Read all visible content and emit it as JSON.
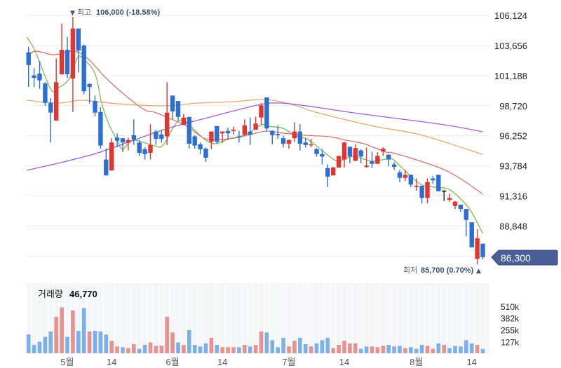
{
  "chart_data": {
    "type": "candlestick",
    "price_axis": {
      "range": [
        85539,
        107389
      ],
      "ticks": [
        "106,124",
        "103,656",
        "101,188",
        "98,720",
        "96,252",
        "93,784",
        "91,316",
        "88,848"
      ],
      "tick_values": [
        106124,
        103656,
        101188,
        98720,
        96252,
        93784,
        91316,
        88848,
        86380
      ]
    },
    "x_axis": {
      "labels": [
        {
          "index": 7,
          "text": "5월"
        },
        {
          "index": 15,
          "text": "14"
        },
        {
          "index": 26,
          "text": "6월"
        },
        {
          "index": 35,
          "text": "14"
        },
        {
          "index": 47,
          "text": "7월"
        },
        {
          "index": 57,
          "text": "14"
        },
        {
          "index": 70,
          "text": "8월"
        },
        {
          "index": 80,
          "text": "14"
        }
      ]
    },
    "candles_ohlc": [
      [
        103100,
        103550,
        100250,
        102050
      ],
      [
        101200,
        101800,
        100250,
        101000
      ],
      [
        101350,
        102400,
        100100,
        100800
      ],
      [
        100550,
        100650,
        98700,
        98950
      ],
      [
        98950,
        99350,
        95700,
        98150
      ],
      [
        97500,
        102600,
        97500,
        100650
      ],
      [
        101300,
        105450,
        101250,
        103300
      ],
      [
        103300,
        104350,
        101000,
        101300
      ],
      [
        100950,
        106000,
        98200,
        105050
      ],
      [
        105050,
        105050,
        101450,
        103250
      ],
      [
        103650,
        103750,
        99650,
        99900
      ],
      [
        100500,
        100550,
        98900,
        100250
      ],
      [
        99100,
        99550,
        97850,
        98150
      ],
      [
        98200,
        98600,
        95200,
        95450
      ],
      [
        94300,
        95200,
        93000,
        93000
      ],
      [
        93400,
        96050,
        93400,
        95700
      ],
      [
        96100,
        96450,
        95300,
        95850
      ],
      [
        96050,
        96050,
        94900,
        95700
      ],
      [
        95700,
        96100,
        95050,
        95900
      ],
      [
        96300,
        97600,
        95500,
        95950
      ],
      [
        95700,
        95900,
        94600,
        94850
      ],
      [
        95150,
        95300,
        94300,
        94750
      ],
      [
        94850,
        97200,
        94300,
        95500
      ],
      [
        96600,
        96750,
        95500,
        96000
      ],
      [
        96350,
        96700,
        95700,
        96000
      ],
      [
        96200,
        100650,
        95500,
        98150
      ],
      [
        99550,
        99550,
        97600,
        98250
      ],
      [
        99100,
        99100,
        97500,
        97800
      ],
      [
        97150,
        98050,
        97150,
        97750
      ],
      [
        97800,
        97800,
        95200,
        95600
      ],
      [
        96200,
        96300,
        95200,
        95450
      ],
      [
        95550,
        95700,
        94750,
        95150
      ],
      [
        95200,
        95300,
        94100,
        94450
      ],
      [
        95750,
        96600,
        95150,
        96600
      ],
      [
        97050,
        97050,
        95600,
        95750
      ],
      [
        96450,
        96600,
        95650,
        96600
      ],
      [
        96650,
        96900,
        95900,
        96450
      ],
      [
        96650,
        97000,
        96350,
        96750
      ],
      [
        96200,
        96650,
        95700,
        96100
      ],
      [
        96350,
        97600,
        96200,
        97100
      ],
      [
        96600,
        97750,
        95500,
        96350
      ],
      [
        96750,
        97800,
        96750,
        97250
      ],
      [
        97750,
        98950,
        97150,
        98750
      ],
      [
        99400,
        99400,
        96600,
        96850
      ],
      [
        96650,
        96700,
        95550,
        96300
      ],
      [
        96400,
        97100,
        96000,
        96300
      ],
      [
        96050,
        96250,
        95300,
        95600
      ],
      [
        95600,
        95950,
        95200,
        95900
      ],
      [
        96050,
        97350,
        95750,
        96600
      ],
      [
        96600,
        97200,
        95050,
        95600
      ],
      [
        95700,
        96050,
        95300,
        95500
      ],
      [
        95500,
        96000,
        95300,
        95550
      ],
      [
        95150,
        95250,
        94550,
        94750
      ],
      [
        94750,
        95150,
        93900,
        94550
      ],
      [
        93600,
        93900,
        92050,
        92900
      ],
      [
        93000,
        93700,
        93000,
        93650
      ],
      [
        93650,
        94600,
        93650,
        94600
      ],
      [
        94300,
        95750,
        93650,
        95700
      ],
      [
        95350,
        95350,
        94000,
        94550
      ],
      [
        94200,
        95550,
        94150,
        95250
      ],
      [
        95050,
        95150,
        94000,
        94550
      ],
      [
        93700,
        95300,
        93600,
        93800
      ],
      [
        94150,
        94950,
        93600,
        93950
      ],
      [
        93950,
        94900,
        93950,
        94600
      ],
      [
        94950,
        95300,
        94600,
        95200
      ],
      [
        94700,
        94750,
        93750,
        94300
      ],
      [
        93900,
        94100,
        93450,
        93700
      ],
      [
        93250,
        93450,
        92450,
        92800
      ],
      [
        92800,
        93450,
        92550,
        93050
      ],
      [
        93050,
        93050,
        92050,
        92250
      ],
      [
        92050,
        92750,
        91750,
        92150
      ],
      [
        92150,
        92150,
        90700,
        91150
      ],
      [
        91150,
        92750,
        90700,
        92450
      ],
      [
        92750,
        92950,
        92300,
        92600
      ],
      [
        93050,
        93050,
        91700,
        91700
      ],
      [
        91750,
        91800,
        90900,
        91750
      ],
      [
        91000,
        91500,
        90850,
        91150
      ],
      [
        90500,
        90900,
        90250,
        90850
      ],
      [
        90600,
        90600,
        90000,
        90250
      ],
      [
        90250,
        90250,
        88000,
        89350
      ],
      [
        89150,
        89150,
        87100,
        87100
      ],
      [
        86150,
        88600,
        85700,
        87850
      ],
      [
        87400,
        87400,
        86100,
        86300
      ]
    ],
    "moving_averages": [
      {
        "name": "ma5",
        "color": "#7dbb55",
        "points": [
          [
            -0.3,
            104341
          ],
          [
            1.2,
            103192
          ],
          [
            4,
            100087
          ],
          [
            5.2,
            100144
          ],
          [
            7.3,
            100891
          ],
          [
            8.8,
            102617
          ],
          [
            9.8,
            102617
          ],
          [
            12,
            101351
          ],
          [
            13.2,
            98936
          ],
          [
            14.5,
            97211
          ],
          [
            16,
            95889
          ],
          [
            17,
            95141
          ],
          [
            18.9,
            95889
          ],
          [
            22.7,
            95429
          ],
          [
            24.3,
            95487
          ],
          [
            26.5,
            97211
          ],
          [
            28,
            97500
          ],
          [
            29.9,
            96752
          ],
          [
            32,
            95889
          ],
          [
            33.7,
            95602
          ],
          [
            36.2,
            96004
          ],
          [
            39.2,
            96349
          ],
          [
            42,
            97154
          ],
          [
            43,
            97039
          ],
          [
            45.9,
            96866
          ],
          [
            48,
            96292
          ],
          [
            50.2,
            96004
          ],
          [
            51.8,
            95487
          ],
          [
            54.3,
            94566
          ],
          [
            56,
            94164
          ],
          [
            58.5,
            94566
          ],
          [
            62,
            94164
          ],
          [
            64.5,
            94337
          ],
          [
            65.7,
            94337
          ],
          [
            67.9,
            93416
          ],
          [
            70.8,
            92266
          ],
          [
            73.3,
            92036
          ],
          [
            75.9,
            91864
          ],
          [
            78.4,
            90886
          ],
          [
            80,
            89967
          ],
          [
            82,
            88241
          ]
        ]
      },
      {
        "name": "ma20",
        "color": "#d9736b",
        "points": [
          [
            -0.3,
            102674
          ],
          [
            1.2,
            103192
          ],
          [
            4.1,
            102904
          ],
          [
            5.6,
            102962
          ],
          [
            8.4,
            103192
          ],
          [
            10.9,
            102502
          ],
          [
            13.8,
            101064
          ],
          [
            17.6,
            99512
          ],
          [
            21,
            98362
          ],
          [
            22.7,
            98189
          ],
          [
            25.2,
            97729
          ],
          [
            28.6,
            97039
          ],
          [
            32,
            96004
          ],
          [
            36.2,
            96004
          ],
          [
            40,
            96349
          ],
          [
            43,
            96637
          ],
          [
            46,
            96464
          ],
          [
            50.2,
            96292
          ],
          [
            54.3,
            96177
          ],
          [
            57.3,
            95889
          ],
          [
            60.5,
            95600
          ],
          [
            64.5,
            94911
          ],
          [
            65.7,
            94854
          ],
          [
            70.8,
            94164
          ],
          [
            75,
            93474
          ],
          [
            78.4,
            92611
          ],
          [
            82,
            91462
          ]
        ]
      },
      {
        "name": "ma60",
        "color": "#e8a96a",
        "points": [
          [
            -0.3,
            99167
          ],
          [
            5.4,
            98936
          ],
          [
            9.7,
            99167
          ],
          [
            16,
            98879
          ],
          [
            24.4,
            98706
          ],
          [
            30.7,
            98936
          ],
          [
            37,
            99052
          ],
          [
            42.9,
            99224
          ],
          [
            48,
            98764
          ],
          [
            51.8,
            98189
          ],
          [
            62.3,
            97039
          ],
          [
            70.8,
            96327
          ],
          [
            82,
            94712
          ]
        ]
      },
      {
        "name": "ma120",
        "color": "#9d5fd8",
        "points": [
          [
            -0.3,
            93416
          ],
          [
            11.7,
            94739
          ],
          [
            24.4,
            96752
          ],
          [
            32.8,
            97786
          ],
          [
            41.3,
            98764
          ],
          [
            45.5,
            98936
          ],
          [
            51.8,
            98600
          ],
          [
            57.8,
            98189
          ],
          [
            64.5,
            97786
          ],
          [
            75,
            97154
          ],
          [
            82,
            96579
          ]
        ]
      }
    ],
    "volume": {
      "label": "거래량",
      "current": "46,770",
      "range": [
        0,
        760000
      ],
      "ticks": [
        "510k",
        "382k",
        "255k",
        "127k"
      ],
      "tick_values": [
        510000,
        382000,
        255000,
        127000
      ],
      "values": [
        205000,
        92000,
        125000,
        178000,
        236000,
        396000,
        498000,
        178000,
        465000,
        244000,
        490000,
        236000,
        244000,
        236000,
        203000,
        135000,
        74000,
        66000,
        56000,
        99000,
        48000,
        91000,
        117000,
        81000,
        81000,
        396000,
        226000,
        117000,
        91000,
        251000,
        91000,
        74000,
        107000,
        168000,
        91000,
        66000,
        66000,
        66000,
        66000,
        91000,
        74000,
        91000,
        236000,
        226000,
        142000,
        66000,
        168000,
        74000,
        135000,
        168000,
        99000,
        74000,
        107000,
        142000,
        168000,
        56000,
        91000,
        135000,
        107000,
        107000,
        48000,
        74000,
        74000,
        66000,
        81000,
        91000,
        74000,
        81000,
        56000,
        66000,
        48000,
        91000,
        81000,
        48000,
        107000,
        91000,
        56000,
        81000,
        74000,
        142000,
        107000,
        91000,
        46770
      ],
      "up": [
        0,
        0,
        0,
        0,
        0,
        1,
        1,
        0,
        1,
        0,
        0,
        1,
        0,
        0,
        0,
        1,
        1,
        0,
        1,
        1,
        0,
        0,
        1,
        1,
        1,
        1,
        1,
        0,
        1,
        0,
        0,
        0,
        0,
        1,
        0,
        1,
        1,
        1,
        0,
        1,
        0,
        1,
        1,
        0,
        0,
        0,
        0,
        1,
        1,
        0,
        0,
        1,
        0,
        0,
        0,
        1,
        1,
        1,
        1,
        1,
        0,
        0,
        1,
        1,
        1,
        0,
        0,
        0,
        1,
        0,
        0,
        0,
        1,
        1,
        0,
        1,
        0,
        0,
        0,
        0,
        0,
        1,
        0
      ]
    },
    "high_annotation": {
      "label": "최고",
      "value": "106,000 (-18.58%)",
      "index": 8,
      "price": 106000
    },
    "low_annotation": {
      "label": "최저",
      "value": "85,700 (0.70%)",
      "index": 81,
      "price": 85700
    },
    "current_price": {
      "text": "86,300",
      "value": 86300
    },
    "colors": {
      "up": "#e0362f",
      "down": "#2b6fd6",
      "even": "#222222",
      "vol_up": "#e8918f",
      "vol_down": "#7cb0ea",
      "tag": "#4a5e97",
      "grid": "#ececec"
    }
  }
}
